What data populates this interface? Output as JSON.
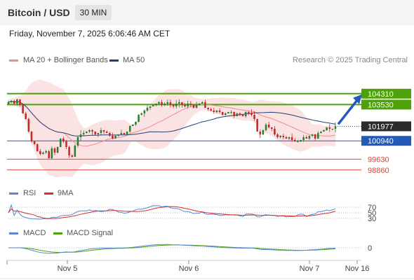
{
  "header": {
    "title": "Bitcoin / USD",
    "timeframe": "30 MIN"
  },
  "datetime": "Friday, November 7, 2025 6:06:46 AM CET",
  "legend": {
    "ma20": "MA 20 + Bollinger Bands",
    "ma50": "MA 50",
    "credit": "Research © 2025 Trading Central"
  },
  "colors": {
    "up": "#2e7d32",
    "down": "#c62828",
    "resistance": "#4ea10a",
    "support_current": "#2359b8",
    "support_lower": "#e0453b",
    "ma20": "#ef8c8c",
    "ma50": "#1f3f7a",
    "rsi": "#5b86d6",
    "rsi_ma": "#d32f2f",
    "macd": "#5b86d6",
    "macd_signal": "#4ea10a"
  },
  "chart_data": [
    {
      "type": "candlestick",
      "ylim": [
        98400,
        105100
      ],
      "x_ticks": [
        "Nov 5",
        "Nov 6",
        "Nov 7",
        "Nov 16"
      ],
      "levels": [
        {
          "value": 104310,
          "label": "104310",
          "kind": "resistance"
        },
        {
          "value": 103530,
          "label": "103530",
          "kind": "resistance"
        },
        {
          "value": 101977,
          "label": "101977",
          "kind": "last"
        },
        {
          "value": 100940,
          "label": "100940",
          "kind": "pivot"
        },
        {
          "value": 99630,
          "label": "99630",
          "kind": "support"
        },
        {
          "value": 98860,
          "label": "98860",
          "kind": "support"
        }
      ],
      "forecast": "up",
      "close": [
        103700,
        103800,
        103600,
        103900,
        103500,
        102900,
        102500,
        101600,
        100900,
        100700,
        100200,
        100000,
        100100,
        100200,
        99700,
        100400,
        100100,
        100500,
        101100,
        100900,
        100500,
        99900,
        99800,
        100600,
        101200,
        101400,
        101500,
        101600,
        101700,
        101600,
        101400,
        101500,
        101700,
        101600,
        101500,
        101300,
        101100,
        101300,
        101400,
        101500,
        101400,
        101600,
        102000,
        102100,
        102300,
        102800,
        102900,
        103100,
        103300,
        103400,
        103500,
        103600,
        103700,
        103500,
        103600,
        103700,
        103500,
        103400,
        103600,
        103700,
        103500,
        103400,
        103600,
        103500,
        103300,
        103500,
        103600,
        103700,
        103300,
        103200,
        103100,
        103000,
        103100,
        103000,
        102800,
        102900,
        103000,
        103000,
        102700,
        102900,
        102800,
        102700,
        103000,
        102900,
        102800,
        102500,
        101600,
        101400,
        101700,
        102100,
        101900,
        101800,
        101400,
        101200,
        101300,
        101200,
        101100,
        101200,
        101000,
        100900,
        100900,
        101000,
        101200,
        101100,
        101300,
        101400,
        101100,
        101500,
        101600,
        101700,
        101900,
        101800,
        101800,
        101977
      ]
    },
    {
      "type": "line",
      "title": "RSI",
      "series": [
        {
          "name": "RSI"
        },
        {
          "name": "9MA"
        }
      ],
      "y_ticks": [
        70,
        50,
        30
      ],
      "ylim": [
        20,
        80
      ]
    },
    {
      "type": "line",
      "title": "MACD",
      "series": [
        {
          "name": "MACD"
        },
        {
          "name": "MACD Signal"
        }
      ],
      "y_ticks": [
        0
      ]
    }
  ]
}
